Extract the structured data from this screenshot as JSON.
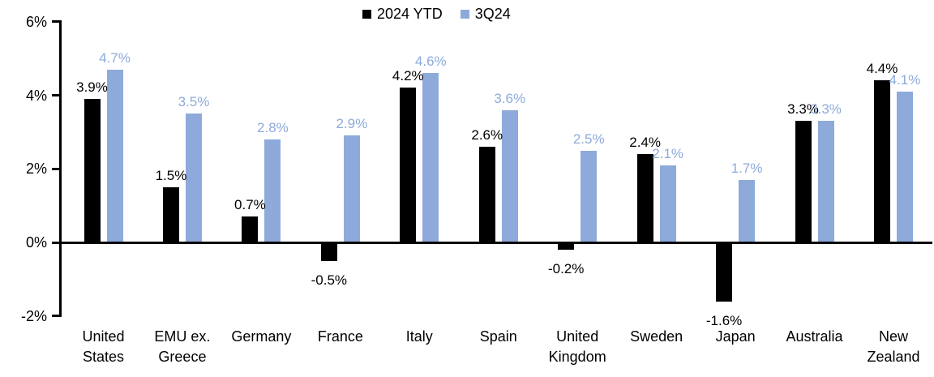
{
  "legend": {
    "items": [
      {
        "label": "2024 YTD",
        "color": "#000000"
      },
      {
        "label": "3Q24",
        "color": "#8EAADB"
      }
    ]
  },
  "chart_data": {
    "type": "bar",
    "title": "",
    "categories": [
      "United States",
      "EMU ex. Greece",
      "Germany",
      "France",
      "Italy",
      "Spain",
      "United Kingdom",
      "Sweden",
      "Japan",
      "Australia",
      "New Zealand"
    ],
    "category_lines": [
      [
        "United",
        "States"
      ],
      [
        "EMU ex.",
        "Greece"
      ],
      [
        "Germany"
      ],
      [
        "France"
      ],
      [
        "Italy"
      ],
      [
        "Spain"
      ],
      [
        "United",
        "Kingdom"
      ],
      [
        "Sweden"
      ],
      [
        "Japan"
      ],
      [
        "Australia"
      ],
      [
        "New",
        "Zealand"
      ]
    ],
    "series": [
      {
        "name": "2024 YTD",
        "color": "#000000",
        "values": [
          3.9,
          1.5,
          0.7,
          -0.5,
          4.2,
          2.6,
          -0.2,
          2.4,
          -1.6,
          3.3,
          4.4
        ],
        "labels": [
          "3.9%",
          "1.5%",
          "0.7%",
          "-0.5%",
          "4.2%",
          "2.6%",
          "-0.2%",
          "2.4%",
          "-1.6%",
          "3.3%",
          "4.4%"
        ]
      },
      {
        "name": "3Q24",
        "color": "#8EAADB",
        "values": [
          4.7,
          3.5,
          2.8,
          2.9,
          4.6,
          3.6,
          2.5,
          2.1,
          1.7,
          3.3,
          4.1
        ],
        "labels": [
          "4.7%",
          "3.5%",
          "2.8%",
          "2.9%",
          "4.6%",
          "3.6%",
          "2.5%",
          "2.1%",
          "1.7%",
          "3.3%",
          "4.1%"
        ]
      }
    ],
    "y_ticks": [
      {
        "label": "6%",
        "value": 6
      },
      {
        "label": "4%",
        "value": 4
      },
      {
        "label": "2%",
        "value": 2
      },
      {
        "label": "0%",
        "value": 0
      },
      {
        "label": "-2%",
        "value": -2
      }
    ],
    "ylim": [
      -2,
      6
    ],
    "grid": false,
    "legend_position": "top-center",
    "axis_color": "#000000",
    "background_color": "#ffffff"
  }
}
